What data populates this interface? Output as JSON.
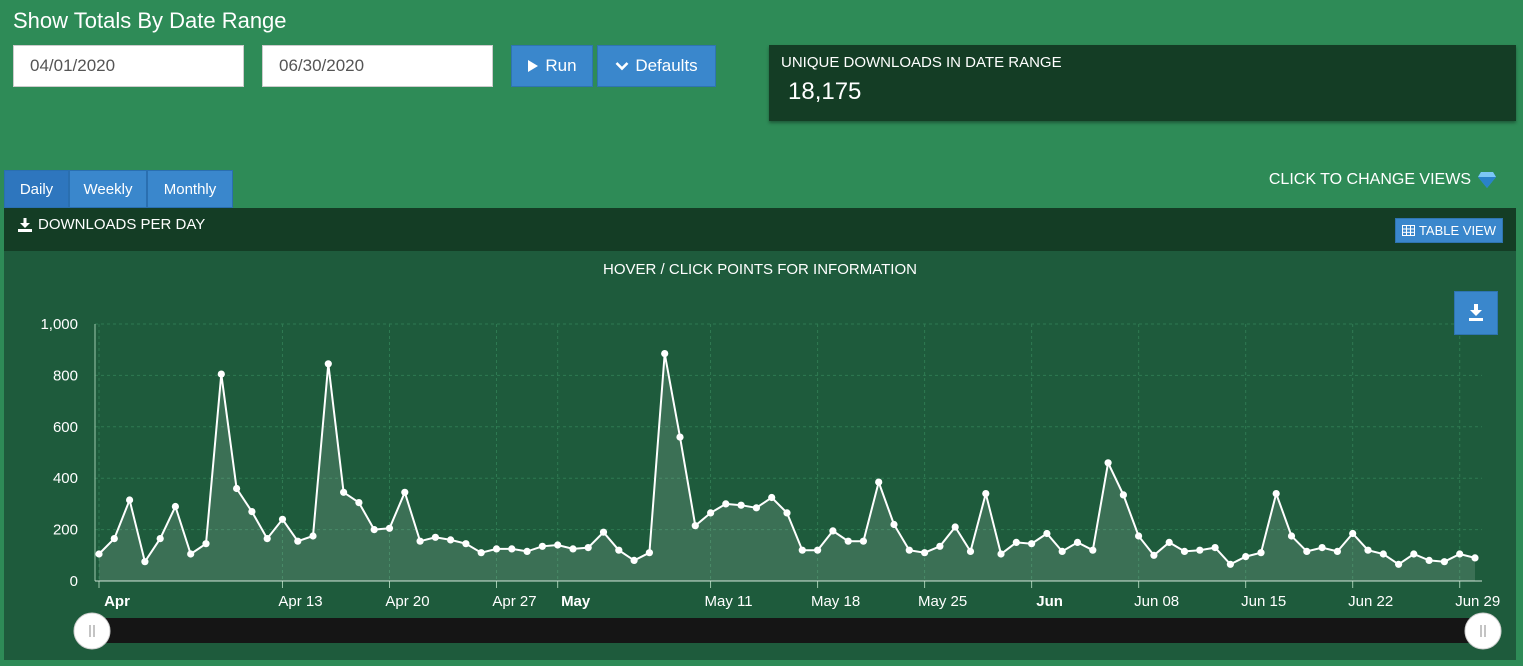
{
  "header": {
    "title": "Show Totals By Date Range"
  },
  "form": {
    "start_date": "04/01/2020",
    "end_date": "06/30/2020",
    "run_label": "Run",
    "defaults_label": "Defaults"
  },
  "summary": {
    "label": "UNIQUE DOWNLOADS IN DATE RANGE",
    "value": "18,175"
  },
  "tabs": [
    {
      "label": "Daily",
      "active": true
    },
    {
      "label": "Weekly",
      "active": false
    },
    {
      "label": "Monthly",
      "active": false
    }
  ],
  "change_views_label": "CLICK TO CHANGE VIEWS",
  "panel": {
    "title": "DOWNLOADS PER DAY",
    "table_view_label": "TABLE VIEW"
  },
  "chart_data": {
    "type": "area",
    "title": "HOVER / CLICK POINTS FOR INFORMATION",
    "x_start": "2020-04-01",
    "x_end": "2020-06-30",
    "ylim": [
      0,
      1000
    ],
    "y_ticks": [
      "0",
      "200",
      "400",
      "600",
      "800",
      "1,000"
    ],
    "x_tick_labels": [
      {
        "date": "2020-04-01",
        "label": "Apr",
        "bold": true
      },
      {
        "date": "2020-04-13",
        "label": "Apr 13",
        "bold": false
      },
      {
        "date": "2020-04-20",
        "label": "Apr 20",
        "bold": false
      },
      {
        "date": "2020-04-27",
        "label": "Apr 27",
        "bold": false
      },
      {
        "date": "2020-05-01",
        "label": "May",
        "bold": true
      },
      {
        "date": "2020-05-11",
        "label": "May 11",
        "bold": false
      },
      {
        "date": "2020-05-18",
        "label": "May 18",
        "bold": false
      },
      {
        "date": "2020-05-25",
        "label": "May 25",
        "bold": false
      },
      {
        "date": "2020-06-01",
        "label": "Jun",
        "bold": true
      },
      {
        "date": "2020-06-08",
        "label": "Jun 08",
        "bold": false
      },
      {
        "date": "2020-06-15",
        "label": "Jun 15",
        "bold": false
      },
      {
        "date": "2020-06-22",
        "label": "Jun 22",
        "bold": false
      },
      {
        "date": "2020-06-29",
        "label": "Jun 29",
        "bold": false
      }
    ],
    "values": [
      105,
      165,
      315,
      75,
      165,
      290,
      105,
      145,
      805,
      360,
      270,
      165,
      240,
      155,
      175,
      845,
      345,
      305,
      200,
      205,
      345,
      155,
      170,
      160,
      145,
      110,
      125,
      125,
      115,
      135,
      140,
      125,
      130,
      190,
      120,
      80,
      110,
      885,
      560,
      215,
      265,
      300,
      295,
      285,
      325,
      265,
      120,
      120,
      195,
      155,
      155,
      385,
      220,
      120,
      110,
      135,
      210,
      115,
      340,
      105,
      150,
      145,
      185,
      115,
      150,
      120,
      460,
      335,
      175,
      100,
      150,
      115,
      120,
      130,
      65,
      95,
      110,
      340,
      175,
      115,
      130,
      115,
      185,
      120,
      105,
      65,
      105,
      80,
      75,
      105,
      90
    ],
    "colors": {
      "line": "#ffffff",
      "grid": "#2f7a52",
      "axis": "#ffffff"
    }
  }
}
